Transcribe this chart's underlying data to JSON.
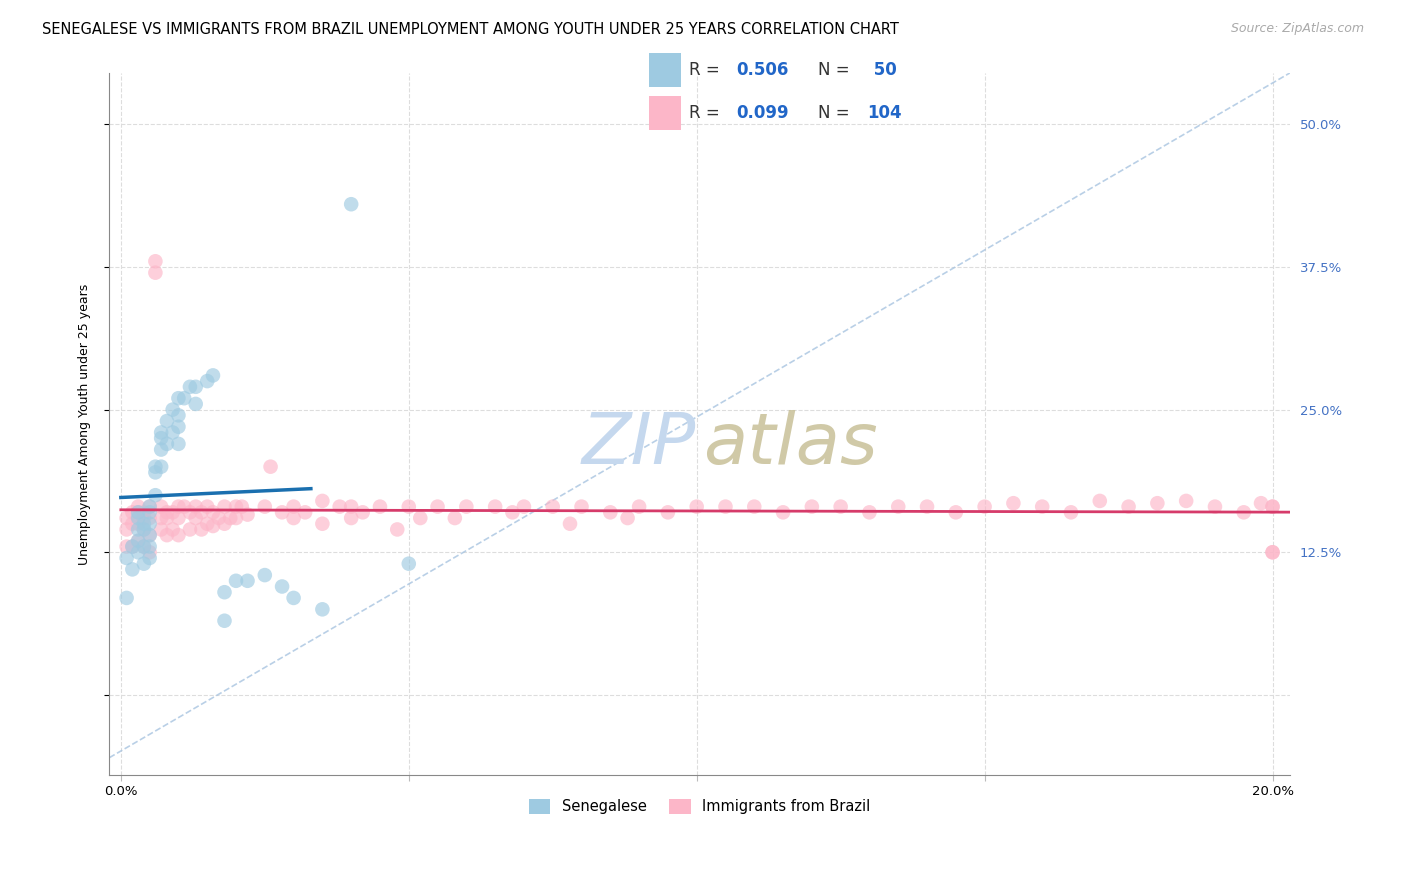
{
  "title": "SENEGALESE VS IMMIGRANTS FROM BRAZIL UNEMPLOYMENT AMONG YOUTH UNDER 25 YEARS CORRELATION CHART",
  "source": "Source: ZipAtlas.com",
  "ylabel": "Unemployment Among Youth under 25 years",
  "xlim": [
    -0.002,
    0.203
  ],
  "ylim": [
    -0.07,
    0.545
  ],
  "xticks": [
    0.0,
    0.05,
    0.1,
    0.15,
    0.2
  ],
  "xtick_labels": [
    "0.0%",
    "",
    "",
    "",
    "20.0%"
  ],
  "yticks": [
    0.0,
    0.125,
    0.25,
    0.375,
    0.5
  ],
  "ytick_right_labels": [
    "",
    "12.5%",
    "25.0%",
    "37.5%",
    "50.0%"
  ],
  "legend_r1": "0.506",
  "legend_n1": "50",
  "legend_r2": "0.099",
  "legend_n2": "104",
  "blue_dot_color": "#9ecae1",
  "pink_dot_color": "#fcb6c8",
  "blue_line_color": "#1a6faf",
  "pink_line_color": "#d63b6a",
  "dash_line_color": "#a8c4e0",
  "blue_text_color": "#2166c8",
  "right_tick_color": "#4472c4",
  "watermark_zip_color": "#c5d8ee",
  "watermark_atlas_color": "#c8c098",
  "title_fontsize": 10.5,
  "source_fontsize": 9,
  "tick_fontsize": 9.5,
  "legend_fontsize": 12,
  "ylabel_fontsize": 9,
  "senegalese_x": [
    0.001,
    0.001,
    0.002,
    0.002,
    0.003,
    0.003,
    0.003,
    0.003,
    0.003,
    0.004,
    0.004,
    0.004,
    0.004,
    0.005,
    0.005,
    0.005,
    0.005,
    0.005,
    0.005,
    0.006,
    0.006,
    0.006,
    0.007,
    0.007,
    0.007,
    0.007,
    0.008,
    0.008,
    0.009,
    0.009,
    0.01,
    0.01,
    0.01,
    0.01,
    0.011,
    0.012,
    0.013,
    0.013,
    0.015,
    0.016,
    0.018,
    0.018,
    0.02,
    0.022,
    0.025,
    0.028,
    0.03,
    0.035,
    0.04,
    0.05
  ],
  "senegalese_y": [
    0.12,
    0.085,
    0.13,
    0.11,
    0.16,
    0.155,
    0.145,
    0.135,
    0.125,
    0.15,
    0.145,
    0.13,
    0.115,
    0.165,
    0.16,
    0.15,
    0.14,
    0.13,
    0.12,
    0.2,
    0.195,
    0.175,
    0.23,
    0.225,
    0.215,
    0.2,
    0.24,
    0.22,
    0.25,
    0.23,
    0.26,
    0.245,
    0.235,
    0.22,
    0.26,
    0.27,
    0.27,
    0.255,
    0.275,
    0.28,
    0.09,
    0.065,
    0.1,
    0.1,
    0.105,
    0.095,
    0.085,
    0.075,
    0.43,
    0.115
  ],
  "brazil_x": [
    0.001,
    0.001,
    0.001,
    0.002,
    0.002,
    0.002,
    0.003,
    0.003,
    0.003,
    0.003,
    0.004,
    0.004,
    0.004,
    0.004,
    0.005,
    0.005,
    0.005,
    0.005,
    0.006,
    0.006,
    0.007,
    0.007,
    0.007,
    0.008,
    0.008,
    0.008,
    0.009,
    0.009,
    0.01,
    0.01,
    0.01,
    0.011,
    0.012,
    0.012,
    0.013,
    0.013,
    0.014,
    0.014,
    0.015,
    0.015,
    0.016,
    0.016,
    0.017,
    0.018,
    0.018,
    0.019,
    0.02,
    0.02,
    0.021,
    0.022,
    0.025,
    0.026,
    0.028,
    0.03,
    0.03,
    0.032,
    0.035,
    0.035,
    0.038,
    0.04,
    0.04,
    0.042,
    0.045,
    0.048,
    0.05,
    0.052,
    0.055,
    0.058,
    0.06,
    0.065,
    0.068,
    0.07,
    0.075,
    0.078,
    0.08,
    0.085,
    0.088,
    0.09,
    0.095,
    0.1,
    0.105,
    0.11,
    0.115,
    0.12,
    0.125,
    0.13,
    0.135,
    0.14,
    0.145,
    0.15,
    0.155,
    0.16,
    0.165,
    0.17,
    0.175,
    0.18,
    0.185,
    0.19,
    0.195,
    0.198,
    0.2,
    0.2,
    0.2,
    0.2
  ],
  "brazil_y": [
    0.155,
    0.145,
    0.13,
    0.16,
    0.15,
    0.13,
    0.165,
    0.16,
    0.15,
    0.135,
    0.16,
    0.155,
    0.145,
    0.13,
    0.165,
    0.155,
    0.14,
    0.125,
    0.38,
    0.37,
    0.165,
    0.155,
    0.145,
    0.16,
    0.155,
    0.14,
    0.16,
    0.145,
    0.165,
    0.155,
    0.14,
    0.165,
    0.16,
    0.145,
    0.165,
    0.155,
    0.16,
    0.145,
    0.165,
    0.15,
    0.16,
    0.148,
    0.155,
    0.165,
    0.15,
    0.155,
    0.165,
    0.155,
    0.165,
    0.158,
    0.165,
    0.2,
    0.16,
    0.165,
    0.155,
    0.16,
    0.17,
    0.15,
    0.165,
    0.165,
    0.155,
    0.16,
    0.165,
    0.145,
    0.165,
    0.155,
    0.165,
    0.155,
    0.165,
    0.165,
    0.16,
    0.165,
    0.165,
    0.15,
    0.165,
    0.16,
    0.155,
    0.165,
    0.16,
    0.165,
    0.165,
    0.165,
    0.16,
    0.165,
    0.165,
    0.16,
    0.165,
    0.165,
    0.16,
    0.165,
    0.168,
    0.165,
    0.16,
    0.17,
    0.165,
    0.168,
    0.17,
    0.165,
    0.16,
    0.168,
    0.165,
    0.125,
    0.125,
    0.165
  ]
}
